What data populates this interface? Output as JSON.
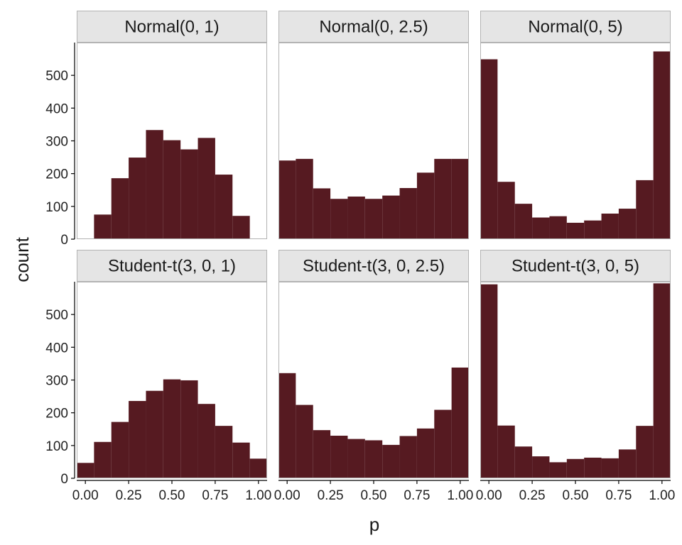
{
  "chart_data": {
    "type": "bar",
    "variant": "faceted-histogram",
    "xlabel": "p",
    "ylabel": "count",
    "bar_color": "#561a21",
    "strip_fill": "#e5e5e5",
    "strip_border": "#b3b3b3",
    "panel_border": "#b3b3b3",
    "axis_line_color": "#000000",
    "grid": false,
    "xlim": [
      -0.05,
      1.05
    ],
    "ylim": [
      0,
      600
    ],
    "x_ticks": [
      0,
      0.25,
      0.5,
      0.75,
      1
    ],
    "x_tick_labels": [
      "0.00",
      "0.25",
      "0.50",
      "0.75",
      "1.00"
    ],
    "y_ticks": [
      0,
      100,
      200,
      300,
      400,
      500
    ],
    "y_tick_labels": [
      "0",
      "100",
      "200",
      "300",
      "400",
      "500"
    ],
    "bin_width": 0.1,
    "bin_centers": [
      0.0,
      0.1,
      0.2,
      0.3,
      0.4,
      0.5,
      0.6,
      0.7,
      0.8,
      0.9,
      1.0
    ],
    "panels": [
      {
        "title": "Normal(0, 1)",
        "values": [
          0,
          75,
          186,
          249,
          333,
          302,
          274,
          309,
          197,
          71,
          0
        ]
      },
      {
        "title": "Normal(0, 2.5)",
        "values": [
          240,
          245,
          155,
          123,
          130,
          123,
          133,
          156,
          203,
          245,
          245
        ]
      },
      {
        "title": "Normal(0, 5)",
        "values": [
          549,
          175,
          108,
          66,
          70,
          50,
          57,
          78,
          93,
          180,
          573
        ]
      },
      {
        "title": "Student-t(3, 0, 1)",
        "values": [
          47,
          111,
          172,
          236,
          267,
          302,
          299,
          227,
          160,
          109,
          60
        ]
      },
      {
        "title": "Student-t(3, 0, 2.5)",
        "values": [
          321,
          224,
          147,
          130,
          120,
          116,
          102,
          129,
          152,
          209,
          338
        ]
      },
      {
        "title": "Student-t(3, 0, 5)",
        "values": [
          592,
          161,
          97,
          67,
          49,
          59,
          63,
          61,
          88,
          160,
          595
        ]
      }
    ]
  }
}
